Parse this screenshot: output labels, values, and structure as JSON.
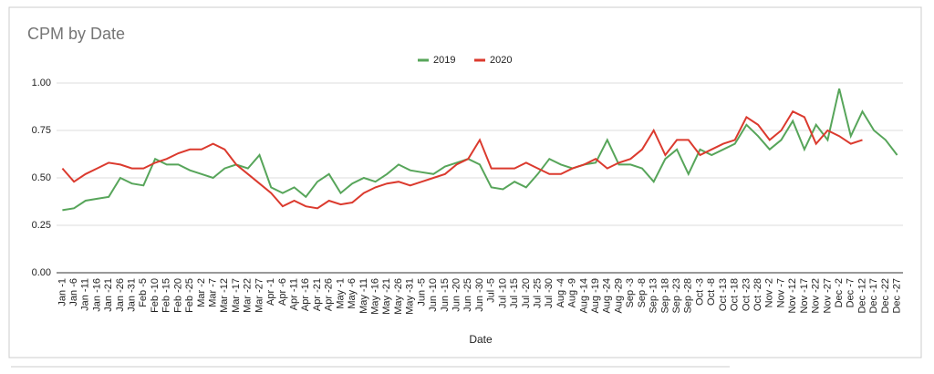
{
  "chart_data": {
    "type": "line",
    "title": "CPM by Date",
    "x_label": "Date",
    "categories": [
      "Jan -1",
      "Jan -6",
      "Jan -11",
      "Jan -16",
      "Jan -21",
      "Jan -26",
      "Jan -31",
      "Feb -5",
      "Feb -10",
      "Feb -15",
      "Feb -20",
      "Feb -25",
      "Mar -2",
      "Mar -7",
      "Mar -12",
      "Mar -17",
      "Mar -22",
      "Mar -27",
      "Apr -1",
      "Apr -6",
      "Apr -11",
      "Apr -16",
      "Apr -21",
      "Apr -26",
      "May -1",
      "May -6",
      "May -11",
      "May -16",
      "May -21",
      "May -26",
      "May -31",
      "Jun -5",
      "Jun -10",
      "Jun -15",
      "Jun -20",
      "Jun -25",
      "Jun -30",
      "Jul -5",
      "Jul -10",
      "Jul -15",
      "Jul -20",
      "Jul -25",
      "Jul -30",
      "Aug -4",
      "Aug -9",
      "Aug -14",
      "Aug -19",
      "Aug -24",
      "Aug -29",
      "Sep -3",
      "Sep -8",
      "Sep -13",
      "Sep -18",
      "Sep -23",
      "Sep -28",
      "Oct -3",
      "Oct -8",
      "Oct -13",
      "Oct -18",
      "Oct -23",
      "Oct -28",
      "Nov -2",
      "Nov -7",
      "Nov -12",
      "Nov -17",
      "Nov -22",
      "Nov -27",
      "Dec -2",
      "Dec -7",
      "Dec -12",
      "Dec -17",
      "Dec -22",
      "Dec -27"
    ],
    "series": [
      {
        "name": "2019",
        "color": "#57a55a",
        "values": [
          0.33,
          0.34,
          0.38,
          0.39,
          0.4,
          0.5,
          0.47,
          0.46,
          0.6,
          0.57,
          0.57,
          0.54,
          0.52,
          0.5,
          0.55,
          0.57,
          0.55,
          0.62,
          0.45,
          0.42,
          0.45,
          0.4,
          0.48,
          0.52,
          0.42,
          0.47,
          0.5,
          0.48,
          0.52,
          0.57,
          0.54,
          0.53,
          0.52,
          0.56,
          0.58,
          0.6,
          0.57,
          0.45,
          0.44,
          0.48,
          0.45,
          0.52,
          0.6,
          0.57,
          0.55,
          0.57,
          0.58,
          0.7,
          0.57,
          0.57,
          0.55,
          0.48,
          0.6,
          0.65,
          0.52,
          0.65,
          0.62,
          0.65,
          0.68,
          0.78,
          0.72,
          0.65,
          0.7,
          0.8,
          0.65,
          0.78,
          0.7,
          0.97,
          0.72,
          0.85,
          0.75,
          0.7,
          0.62
        ]
      },
      {
        "name": "2020",
        "color": "#db3a2e",
        "values": [
          0.55,
          0.48,
          0.52,
          0.55,
          0.58,
          0.57,
          0.55,
          0.55,
          0.58,
          0.6,
          0.63,
          0.65,
          0.65,
          0.68,
          0.65,
          0.57,
          0.52,
          0.47,
          0.42,
          0.35,
          0.38,
          0.35,
          0.34,
          0.38,
          0.36,
          0.37,
          0.42,
          0.45,
          0.47,
          0.48,
          0.46,
          0.48,
          0.5,
          0.52,
          0.57,
          0.6,
          0.7,
          0.55,
          0.55,
          0.55,
          0.58,
          0.55,
          0.52,
          0.52,
          0.55,
          0.57,
          0.6,
          0.55,
          0.58,
          0.6,
          0.65,
          0.75,
          0.62,
          0.7,
          0.7,
          0.62,
          0.65,
          0.68,
          0.7,
          0.82,
          0.78,
          0.7,
          0.75,
          0.85,
          0.82,
          0.68,
          0.75,
          0.72,
          0.68,
          0.7,
          null,
          null,
          null
        ]
      }
    ],
    "ylim": [
      0,
      1.03
    ],
    "yticks": [
      {
        "value": 0,
        "label": "0.00"
      },
      {
        "value": 0.25,
        "label": "0.25"
      },
      {
        "value": 0.5,
        "label": "0.50"
      },
      {
        "value": 0.75,
        "label": "0.75"
      },
      {
        "value": 1,
        "label": "1.00"
      }
    ],
    "grid": true,
    "legend": "top"
  }
}
